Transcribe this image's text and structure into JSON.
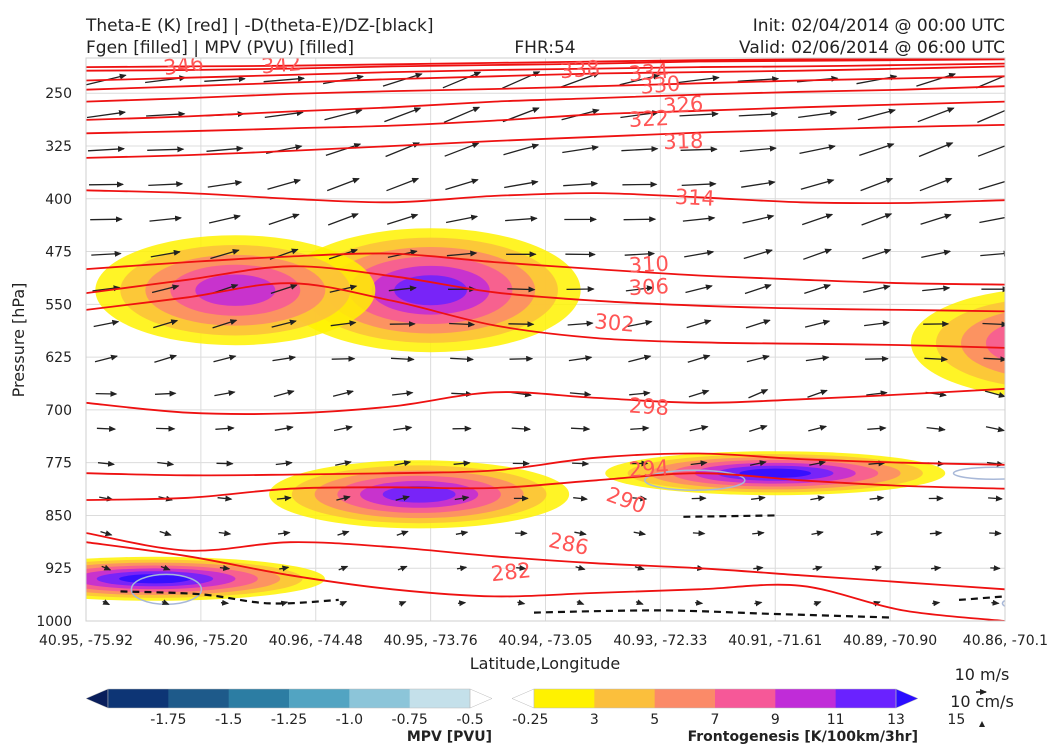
{
  "header": {
    "title_left_1": "Theta-E (K) [red] | -D(theta-E)/DZ-[black]",
    "title_left_2": "Fgen [filled] | MPV (PVU) [filled]",
    "title_center": "FHR:54",
    "title_right_1": "Init: 02/04/2014 @ 00:00 UTC",
    "title_right_2": "Valid: 02/06/2014 @ 06:00 UTC"
  },
  "chart_data": {
    "type": "cross-section contour",
    "xlabel": "Latitude,Longitude",
    "ylabel": "Pressure [hPa]",
    "ylim": [
      1000,
      200
    ],
    "y_ticks": [
      250,
      325,
      400,
      475,
      550,
      625,
      700,
      775,
      850,
      925,
      1000
    ],
    "x_ticks": [
      "40.95, -75.92",
      "40.96, -75.20",
      "40.96, -74.48",
      "40.95, -73.76",
      "40.94, -73.05",
      "40.93, -72.33",
      "40.91, -71.61",
      "40.89, -70.90",
      "40.86, -70.1"
    ],
    "theta_e_contour_labels": [
      "346",
      "342",
      "338",
      "334",
      "330",
      "326",
      "322",
      "318",
      "314",
      "310",
      "306",
      "302",
      "298",
      "294",
      "290",
      "286",
      "282",
      "294"
    ],
    "theta_e_lines": [
      {
        "label": "346",
        "p": [
          213,
          212,
          211,
          209,
          207,
          205,
          203,
          202,
          201,
          200
        ]
      },
      {
        "label": "342",
        "p": [
          218,
          217,
          215,
          212,
          210,
          208,
          205,
          204,
          203,
          202
        ]
      },
      {
        "label": "338",
        "p": [
          232,
          228,
          224,
          220,
          217,
          215,
          213,
          212,
          210,
          208
        ]
      },
      {
        "label": "334",
        "p": [
          245,
          240,
          235,
          230,
          226,
          222,
          220,
          218,
          215,
          212
        ]
      },
      {
        "label": "330",
        "p": [
          262,
          257,
          251,
          247,
          244,
          240,
          236,
          232,
          229,
          226
        ]
      },
      {
        "label": "326",
        "p": [
          288,
          283,
          276,
          270,
          262,
          257,
          252,
          248,
          245,
          240
        ]
      },
      {
        "label": "322",
        "p": [
          307,
          304,
          300,
          296,
          289,
          280,
          275,
          270,
          266,
          262
        ]
      },
      {
        "label": "318",
        "p": [
          342,
          338,
          332,
          325,
          318,
          312,
          306,
          302,
          298,
          295
        ]
      },
      {
        "label": "314",
        "p": [
          388,
          392,
          400,
          405,
          396,
          392,
          398,
          405,
          406,
          402
        ]
      },
      {
        "label": "310",
        "p": [
          500,
          490,
          482,
          478,
          490,
          500,
          509,
          515,
          520,
          522
        ]
      },
      {
        "label": "306",
        "p": [
          534,
          515,
          496,
          510,
          533,
          545,
          552,
          556,
          558,
          560
        ]
      },
      {
        "label": "302",
        "p": [
          558,
          540,
          520,
          545,
          580,
          598,
          604,
          606,
          608,
          612
        ]
      },
      {
        "label": "298",
        "p": [
          690,
          704,
          705,
          695,
          675,
          683,
          690,
          685,
          678,
          670
        ]
      },
      {
        "label": "294",
        "p": [
          790,
          793,
          792,
          790,
          786,
          768,
          762,
          770,
          775,
          778
        ]
      },
      {
        "label": "290",
        "p": [
          828,
          825,
          812,
          810,
          811,
          800,
          790,
          800,
          808,
          812
        ]
      },
      {
        "label": "286",
        "p": [
          875,
          900,
          888,
          895,
          908,
          918,
          925,
          935,
          945,
          955
        ]
      },
      {
        "label": "282",
        "p": [
          888,
          908,
          935,
          955,
          965,
          960,
          955,
          950,
          985,
          1000
        ]
      }
    ],
    "fgen_regions": [
      {
        "lat_index": 3.0,
        "p": 530,
        "max": 13
      },
      {
        "lat_index": 1.3,
        "p": 530,
        "max": 11
      },
      {
        "lat_index": 6.0,
        "p": 790,
        "max": 15
      },
      {
        "lat_index": 2.9,
        "p": 820,
        "max": 13
      },
      {
        "lat_index": 8.4,
        "p": 605,
        "max": 11
      },
      {
        "lat_index": 0.6,
        "p": 940,
        "max": 15
      }
    ],
    "mpv_colorbar": {
      "title": "MPV [PVU]",
      "ticks": [
        "-1.75",
        "-1.5",
        "-1.25",
        "-1.0",
        "-0.75",
        "-0.5",
        "-0.25"
      ],
      "colors": [
        "#0a1f5c",
        "#0d3575",
        "#1e5a8a",
        "#2c7da3",
        "#52a4c2",
        "#8cc5d9",
        "#c4e0ea",
        "#ffffff"
      ]
    },
    "fgen_colorbar": {
      "title": "Frontogenesis [K/100km/3hr]",
      "ticks": [
        "3",
        "5",
        "7",
        "9",
        "11",
        "13",
        "15"
      ],
      "colors": [
        "#ffffff",
        "#fff200",
        "#fbbf3c",
        "#fb8a68",
        "#f65898",
        "#c02cd8",
        "#6a22ff",
        "#2b0dff"
      ]
    },
    "reference_vectors": {
      "horizontal": "10 m/s",
      "vertical": "10 cm/s"
    }
  }
}
